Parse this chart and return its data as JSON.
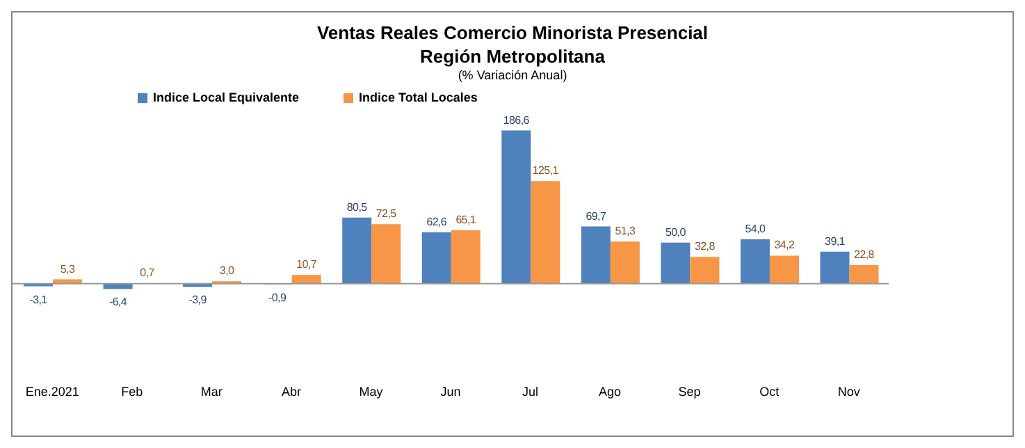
{
  "chart_data": {
    "type": "bar",
    "title": "Ventas Reales Comercio Minorista Presencial",
    "subtitle": "Región Metropolitana",
    "annotations": [
      "(% Variación Anual)"
    ],
    "categories": [
      "Ene.2021",
      "Feb",
      "Mar",
      "Abr",
      "May",
      "Jun",
      "Jul",
      "Ago",
      "Sep",
      "Oct",
      "Nov"
    ],
    "legend": "top left",
    "series": [
      {
        "name": "Indice Local Equivalente",
        "color": "#4f81bd",
        "values": [
          -3.1,
          -6.4,
          -3.9,
          -0.9,
          80.5,
          62.6,
          186.6,
          69.7,
          50.0,
          54.0,
          39.1
        ],
        "value_labels": [
          "-3,1",
          "-6,4",
          "-3,9",
          "-0,9",
          "80,5",
          "62,6",
          "186,6",
          "69,7",
          "50,0",
          "54,0",
          "39,1"
        ]
      },
      {
        "name": "Indice Total Locales",
        "color": "#f79646",
        "values": [
          5.3,
          0.7,
          3.0,
          10.7,
          72.5,
          65.1,
          125.1,
          51.3,
          32.8,
          34.2,
          22.8
        ],
        "value_labels": [
          "5,3",
          "0,7",
          "3,0",
          "10,7",
          "72,5",
          "65,1",
          "125,1",
          "51,3",
          "32,8",
          "34,2",
          "22,8"
        ]
      }
    ]
  }
}
